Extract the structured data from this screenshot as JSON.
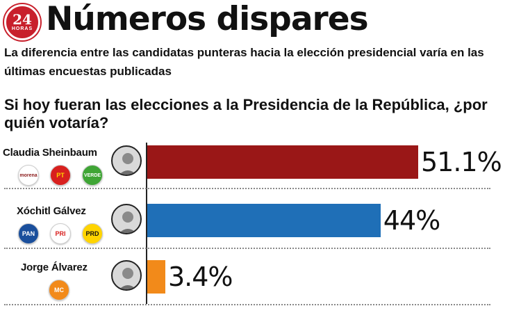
{
  "brand": {
    "logo_number": "24",
    "logo_text": "HORAS"
  },
  "title": "Números dispares",
  "subtitle": "La diferencia entre las candidatas punteras hacia la elección presidencial varía en las últimas encuestas publicadas",
  "question": "Si hoy fueran las elecciones a la Presidencia de la República, ¿por quién votaría?",
  "chart_data": {
    "type": "bar",
    "orientation": "horizontal",
    "categories": [
      "Claudia Sheinbaum",
      "Xóchitl Gálvez",
      "Jorge Álvarez"
    ],
    "values": [
      51.1,
      44,
      3.4
    ],
    "value_labels": [
      "51.1%",
      "44%",
      "3.4%"
    ],
    "bar_colors": [
      "#9a1717",
      "#1f6fb7",
      "#f28a1a"
    ],
    "xlim": [
      0,
      60
    ],
    "grid": false
  },
  "parties": [
    [
      {
        "label": "morena",
        "color": "#8b1a1a",
        "bg": "#ffffff"
      },
      {
        "label": "PT",
        "color": "#ffd400",
        "bg": "#d8201e"
      },
      {
        "label": "VERDE",
        "color": "#ffffff",
        "bg": "#3fa535"
      }
    ],
    [
      {
        "label": "PAN",
        "color": "#ffffff",
        "bg": "#1a4f9c"
      },
      {
        "label": "PRI",
        "color": "#d8201e",
        "bg": "#ffffff"
      },
      {
        "label": "PRD",
        "color": "#111111",
        "bg": "#ffd400"
      }
    ],
    [
      {
        "label": "MC",
        "color": "#ffffff",
        "bg": "#f28a1a"
      }
    ]
  ]
}
